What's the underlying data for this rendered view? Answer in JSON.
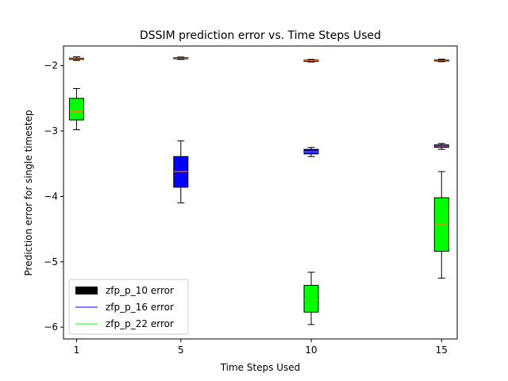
{
  "chart_data": {
    "type": "boxplot",
    "title": "DSSIM prediction error vs. Time Steps Used",
    "xlabel": "Time Steps Used",
    "ylabel": "Prediction error for single timestep",
    "categories": [
      "1",
      "5",
      "10",
      "15"
    ],
    "x": [
      1,
      5,
      10,
      15
    ],
    "xlim": [
      0.5,
      15.6
    ],
    "ylim": [
      -6.18,
      -1.7
    ],
    "yticks": [
      -2,
      -3,
      -4,
      -5,
      -6
    ],
    "yticklabels": [
      "−2",
      "−3",
      "−4",
      "−5",
      "−6"
    ],
    "grid": false,
    "legend_position": "lower-left",
    "series": [
      {
        "name": "zfp_p_10 error",
        "color": "#000000",
        "legend_marker": "patch",
        "boxes": [
          {
            "x": 1,
            "whislo": -1.92,
            "q1": -1.905,
            "med": -1.895,
            "q3": -1.885,
            "whishi": -1.865
          },
          {
            "x": 5,
            "whislo": -1.905,
            "q1": -1.895,
            "med": -1.885,
            "q3": -1.878,
            "whishi": -1.868
          },
          {
            "x": 10,
            "whislo": -1.945,
            "q1": -1.935,
            "med": -1.925,
            "q3": -1.915,
            "whishi": -1.905
          },
          {
            "x": 15,
            "whislo": -1.94,
            "q1": -1.93,
            "med": -1.92,
            "q3": -1.912,
            "whishi": -1.9
          }
        ]
      },
      {
        "name": "zfp_p_16 error",
        "color": "#0000ff",
        "legend_marker": "line",
        "boxes": [
          {
            "x": 5,
            "whislo": -4.1,
            "q1": -3.86,
            "med": -3.62,
            "q3": -3.39,
            "whishi": -3.15
          },
          {
            "x": 10,
            "whislo": -3.39,
            "q1": -3.35,
            "med": -3.32,
            "q3": -3.28,
            "whishi": -3.25
          },
          {
            "x": 15,
            "whislo": -3.28,
            "q1": -3.25,
            "med": -3.23,
            "q3": -3.21,
            "whishi": -3.19
          }
        ]
      },
      {
        "name": "zfp_p_22 error",
        "color": "#00ff00",
        "legend_marker": "line",
        "boxes": [
          {
            "x": 1,
            "whislo": -2.98,
            "q1": -2.83,
            "med": -2.7,
            "q3": -2.5,
            "whishi": -2.35
          },
          {
            "x": 10,
            "whislo": -5.96,
            "q1": -5.77,
            "med": -5.58,
            "q3": -5.36,
            "whishi": -5.16
          },
          {
            "x": 15,
            "whislo": -5.25,
            "q1": -4.84,
            "med": -4.43,
            "q3": -4.02,
            "whishi": -3.62
          }
        ]
      }
    ],
    "median_color": "#ff7f0e"
  }
}
